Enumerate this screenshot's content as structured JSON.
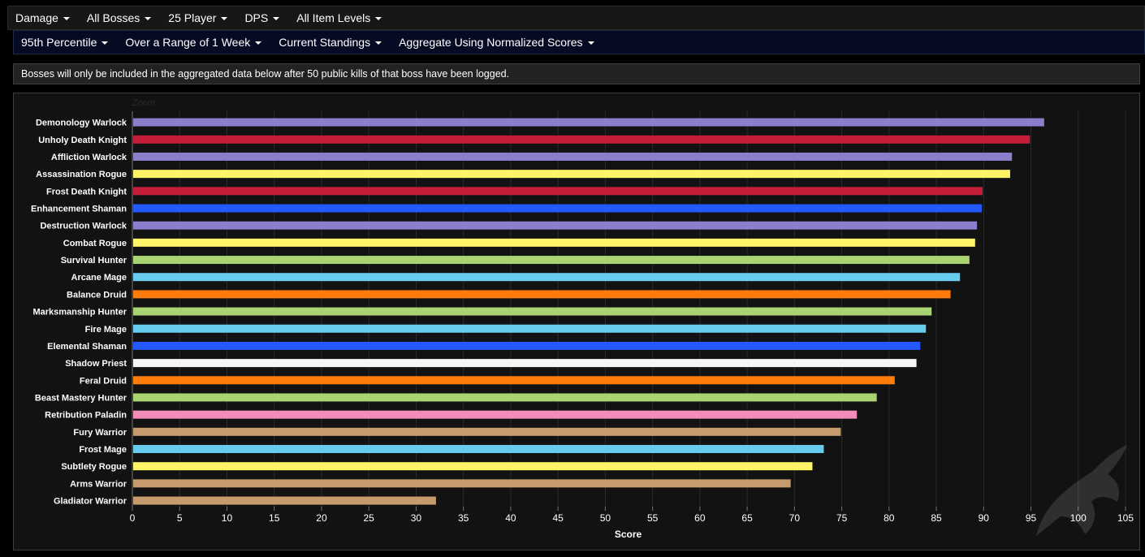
{
  "filters_primary": [
    {
      "label": "Damage"
    },
    {
      "label": "All Bosses"
    },
    {
      "label": "25 Player"
    },
    {
      "label": "DPS"
    },
    {
      "label": "All Item Levels"
    }
  ],
  "filters_secondary": [
    {
      "label": "95th Percentile"
    },
    {
      "label": "Over a Range of 1 Week"
    },
    {
      "label": "Current Standings"
    },
    {
      "label": "Aggregate Using Normalized Scores"
    }
  ],
  "notice": "Bosses will only be included in the aggregated data below after 50 public kills of that boss have been logged.",
  "zoom_label": "Zoom",
  "chart_data": {
    "type": "bar",
    "orientation": "horizontal",
    "xlabel": "Score",
    "xlim": [
      0,
      105
    ],
    "xticks": [
      0,
      5,
      10,
      15,
      20,
      25,
      30,
      35,
      40,
      45,
      50,
      55,
      60,
      65,
      70,
      75,
      80,
      85,
      90,
      95,
      100,
      105
    ],
    "grid": true,
    "categories": [
      "Demonology Warlock",
      "Unholy Death Knight",
      "Affliction Warlock",
      "Assassination Rogue",
      "Frost Death Knight",
      "Enhancement Shaman",
      "Destruction Warlock",
      "Combat Rogue",
      "Survival Hunter",
      "Arcane Mage",
      "Balance Druid",
      "Marksmanship Hunter",
      "Fire Mage",
      "Elemental Shaman",
      "Shadow Priest",
      "Feral Druid",
      "Beast Mastery Hunter",
      "Retribution Paladin",
      "Fury Warrior",
      "Frost Mage",
      "Subtlety Rogue",
      "Arms Warrior",
      "Gladiator Warrior"
    ],
    "values": [
      96.4,
      94.9,
      93.0,
      92.8,
      89.9,
      89.8,
      89.3,
      89.1,
      88.5,
      87.5,
      86.5,
      84.5,
      83.9,
      83.3,
      82.9,
      80.6,
      78.7,
      76.6,
      74.9,
      73.1,
      71.9,
      69.6,
      32.1
    ],
    "colors": [
      "#8B7FCC",
      "#C41E3A",
      "#8B7FCC",
      "#FFF468",
      "#C41E3A",
      "#2359FF",
      "#8B7FCC",
      "#FFF468",
      "#AAD372",
      "#68CCEF",
      "#FF7C0A",
      "#AAD372",
      "#68CCEF",
      "#2359FF",
      "#F5F5F5",
      "#FF7C0A",
      "#AAD372",
      "#F48CBA",
      "#C69B6D",
      "#68CCEF",
      "#FFF468",
      "#C69B6D",
      "#C69B6D"
    ]
  }
}
